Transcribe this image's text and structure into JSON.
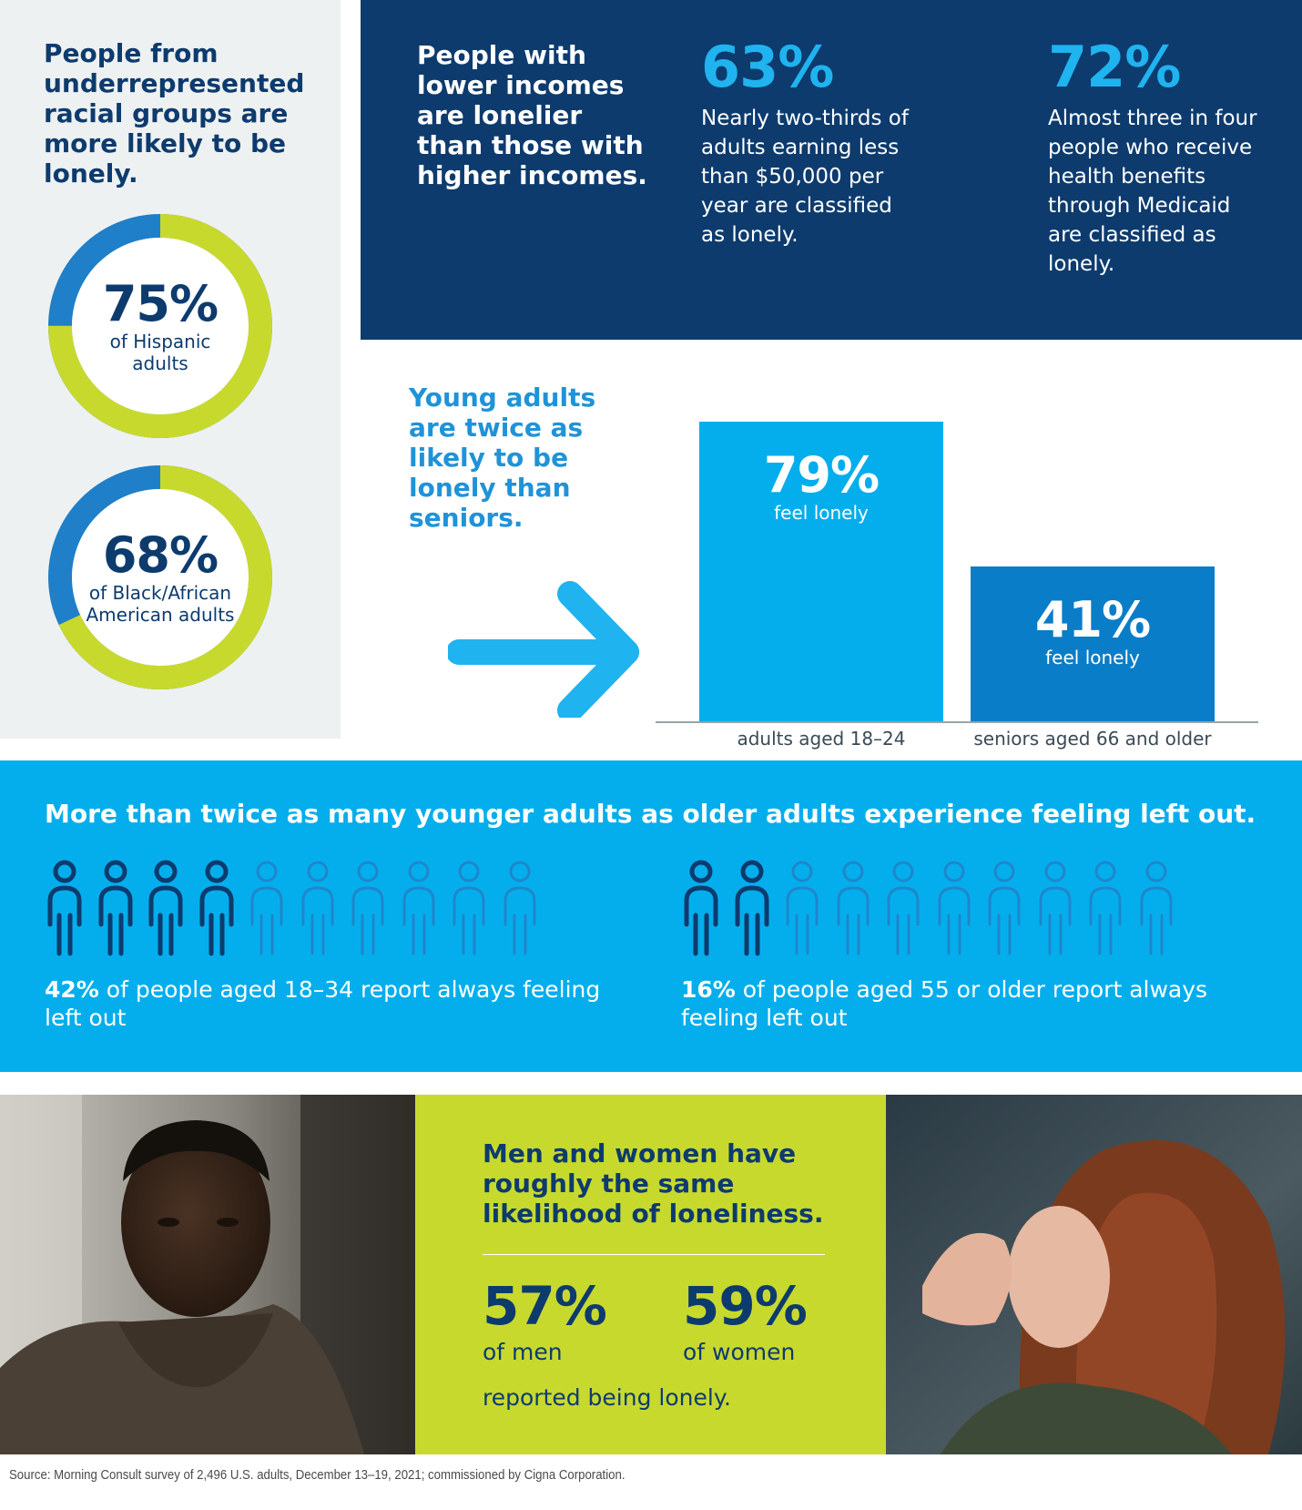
{
  "race": {
    "heading": "People from underrepresented racial groups are more likely to be lonely.",
    "items": [
      {
        "pct": "75%",
        "label": "of Hispanic adults",
        "value": 75
      },
      {
        "pct": "68%",
        "label": "of Black/African American adults",
        "value": 68
      }
    ],
    "colors": {
      "fill": "#c8d92e",
      "rest": "#1f7fc8",
      "center": "#ffffff"
    }
  },
  "income": {
    "heading": "People with lower incomes are lonelier than those with higher incomes.",
    "stats": [
      {
        "pct": "63%",
        "text": "Nearly two-thirds of adults earning less than $50,000 per year are classified as lonely."
      },
      {
        "pct": "72%",
        "text": "Almost three in four people who receive health benefits through Medicaid are classified as lonely."
      }
    ]
  },
  "young": {
    "heading": "Young adults are twice as likely to be lonely than seniors."
  },
  "chart_data": {
    "type": "bar",
    "categories": [
      "adults aged 18–24",
      "seniors aged 66 and older"
    ],
    "values": [
      79,
      41
    ],
    "value_labels": [
      "79%",
      "41%"
    ],
    "bar_sublabel": "feel lonely",
    "colors": [
      "#04aeec",
      "#0a7dc8"
    ]
  },
  "left_out": {
    "heading": "More than twice as many younger adults as older adults experience feeling left out.",
    "groups": [
      {
        "pct": "42%",
        "text": "of people aged 18–34 report always feeling left out",
        "highlighted": 4,
        "total": 10
      },
      {
        "pct": "16%",
        "text": "of people aged 55 or older report always feeling left out",
        "highlighted": 2,
        "total": 10
      }
    ],
    "colors": {
      "highlight": "#0d3b6e",
      "rest": "#1f86cc"
    }
  },
  "gender": {
    "heading": "Men and women have roughly the same likelihood of loneliness.",
    "items": [
      {
        "pct": "57%",
        "label": "of men"
      },
      {
        "pct": "59%",
        "label": "of women"
      }
    ],
    "footer": "reported being lonely."
  },
  "source": "Source: Morning Consult survey of 2,496 U.S. adults, December 13–19, 2021; commissioned by Cigna Corporation."
}
